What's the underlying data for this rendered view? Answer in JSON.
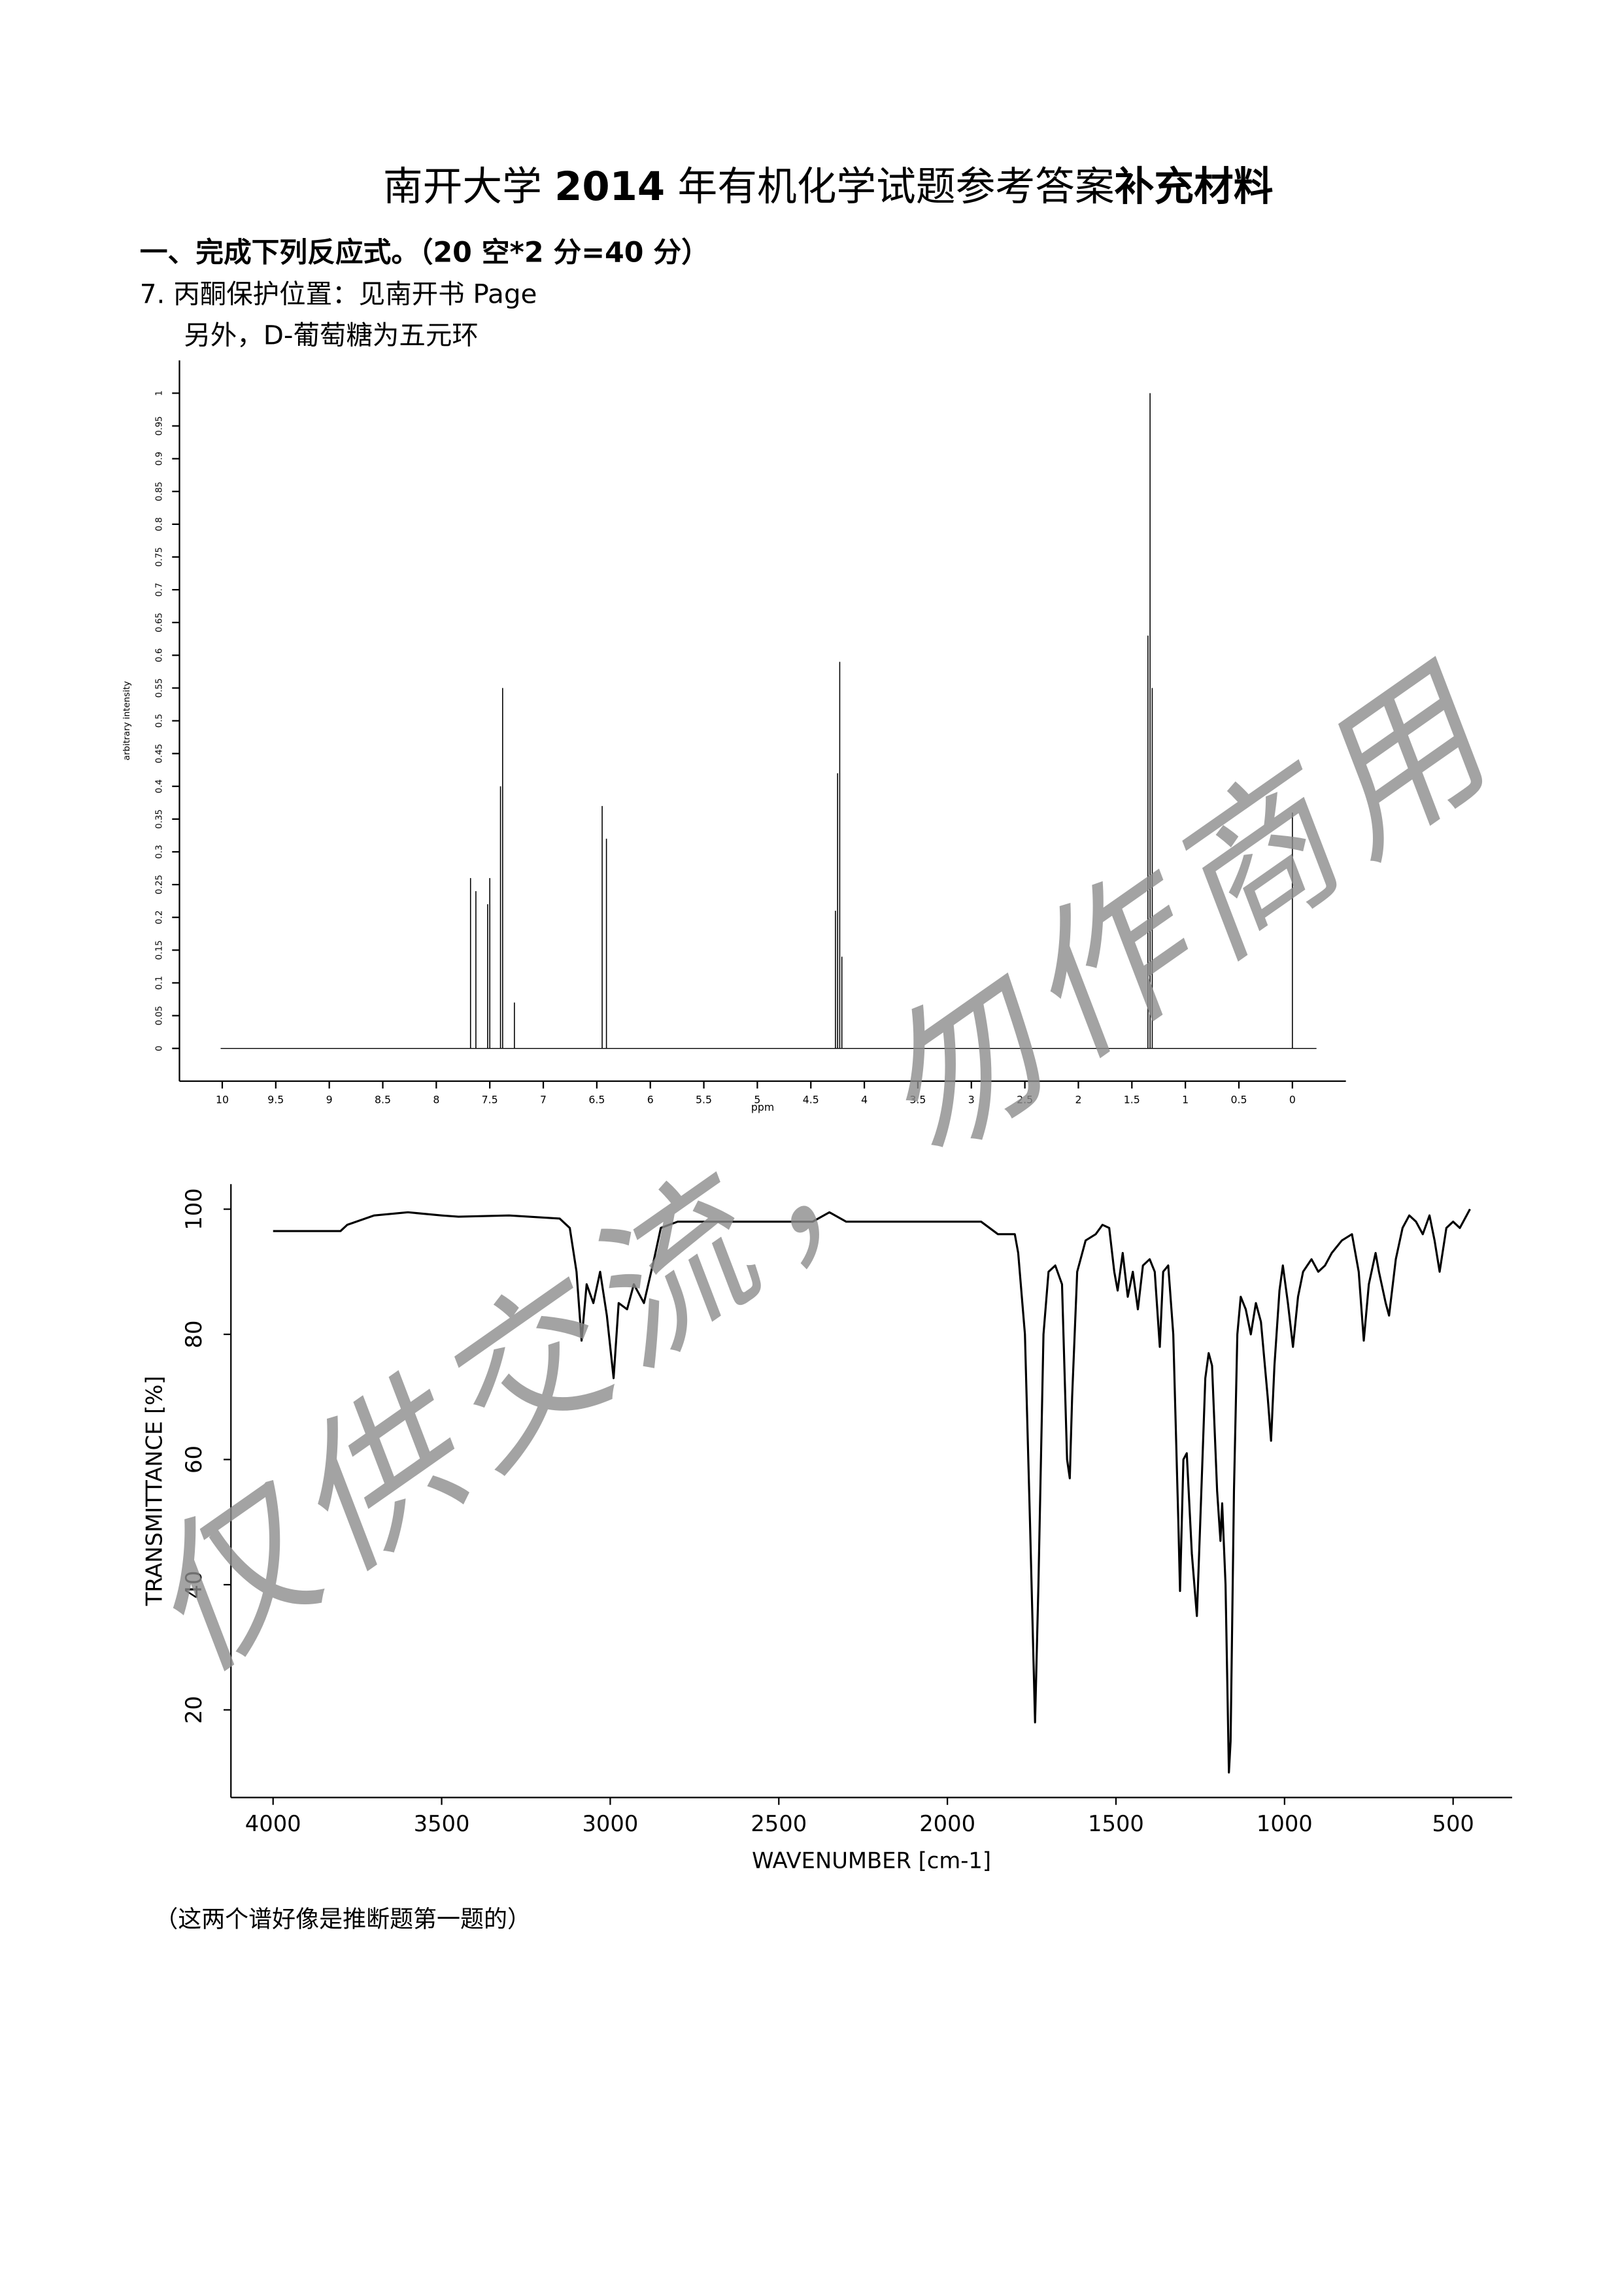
{
  "header": {
    "title": [
      "南开大学 ",
      "2014",
      " 年有机化学试题参考答案",
      "补充材料"
    ]
  },
  "body": {
    "section": "一、完成下列反应式。（20 空*2 分=40 分）",
    "item": "7. 丙酮保护位置：见南开书 Page",
    "note": "另外，D-葡萄糖为五元环",
    "footer": "（这两个谱好像是推断题第一题的）"
  },
  "watermark": "仅供交流，勿作商用",
  "chart_data": [
    {
      "type": "stem",
      "xlabel": "ppm",
      "ylabel": "arbitrary intensity",
      "color": "#000000",
      "x": [
        7.68,
        7.63,
        7.52,
        7.5,
        7.4,
        7.38,
        7.27,
        6.45,
        6.41,
        4.27,
        4.25,
        4.23,
        4.21,
        1.35,
        1.33,
        1.31,
        0
      ],
      "values": [
        0.26,
        0.24,
        0.22,
        0.26,
        0.4,
        0.55,
        0.07,
        0.37,
        0.32,
        0.21,
        0.42,
        0.59,
        0.14,
        0.63,
        1.0,
        0.55,
        0.36
      ],
      "xlim": [
        10.4,
        -0.5
      ],
      "ylim": [
        -0.05,
        1.05
      ],
      "xticks": [
        10,
        9.5,
        9,
        8.5,
        8,
        7.5,
        7,
        6.5,
        6,
        5.5,
        5,
        4.5,
        4,
        3.5,
        3,
        2.5,
        2,
        1.5,
        1,
        0.5,
        0
      ],
      "yticks": [
        0,
        0.05,
        0.1,
        0.15,
        0.2,
        0.25,
        0.3,
        0.35,
        0.4,
        0.45,
        0.5,
        0.55,
        0.6,
        0.65,
        0.7,
        0.75,
        0.8,
        0.85,
        0.9,
        0.95,
        1
      ]
    },
    {
      "type": "line",
      "xlabel": "WAVENUMBER [cm-1]",
      "ylabel": "TRANSMITTANCE [%]",
      "color": "#000000",
      "x": [
        4000,
        3800,
        3780,
        3700,
        3600,
        3500,
        3450,
        3300,
        3150,
        3120,
        3100,
        3085,
        3070,
        3050,
        3030,
        3010,
        2990,
        2975,
        2950,
        2930,
        2900,
        2870,
        2850,
        2800,
        2600,
        2400,
        2350,
        2300,
        2100,
        1900,
        1850,
        1800,
        1790,
        1770,
        1755,
        1740,
        1730,
        1715,
        1700,
        1680,
        1660,
        1645,
        1637,
        1630,
        1615,
        1590,
        1560,
        1540,
        1520,
        1505,
        1495,
        1480,
        1465,
        1450,
        1435,
        1420,
        1400,
        1385,
        1370,
        1360,
        1345,
        1330,
        1315,
        1310,
        1300,
        1290,
        1275,
        1260,
        1250,
        1235,
        1225,
        1215,
        1200,
        1190,
        1185,
        1175,
        1165,
        1160,
        1150,
        1140,
        1130,
        1115,
        1100,
        1085,
        1070,
        1050,
        1040,
        1030,
        1015,
        1005,
        990,
        975,
        960,
        945,
        920,
        900,
        880,
        860,
        830,
        800,
        780,
        765,
        750,
        730,
        720,
        700,
        690,
        670,
        650,
        630,
        610,
        590,
        570,
        555,
        540,
        520,
        500,
        480,
        460,
        450
      ],
      "values": [
        96.5,
        96.5,
        97.5,
        99,
        99.5,
        99,
        98.8,
        99,
        98.5,
        97,
        90,
        79,
        88,
        85,
        90,
        83,
        73,
        85,
        84,
        88,
        85,
        92,
        97,
        98,
        98,
        98,
        99.5,
        98,
        98,
        98,
        96,
        96,
        93,
        80,
        50,
        18,
        40,
        80,
        90,
        91,
        88,
        60,
        57,
        70,
        90,
        95,
        96,
        97.5,
        97,
        90,
        87,
        93,
        86,
        90,
        84,
        91,
        92,
        90,
        78,
        90,
        91,
        80,
        50,
        39,
        60,
        61,
        45,
        35,
        50,
        73,
        77,
        75,
        55,
        47,
        53,
        40,
        10,
        15,
        55,
        80,
        86,
        84,
        80,
        85,
        82,
        70,
        63,
        75,
        87,
        91,
        85,
        78,
        86,
        90,
        92,
        90,
        91,
        93,
        95,
        96,
        90,
        79,
        88,
        93,
        90,
        85,
        83,
        92,
        97,
        99,
        98,
        96,
        99,
        95,
        90,
        97,
        98,
        97,
        99,
        100
      ],
      "xlim": [
        4125,
        325
      ],
      "ylim": [
        6,
        104
      ],
      "xticks": [
        4000,
        3500,
        3000,
        2500,
        2000,
        1500,
        1000,
        500
      ],
      "yticks": [
        20,
        40,
        60,
        80,
        100
      ]
    }
  ]
}
